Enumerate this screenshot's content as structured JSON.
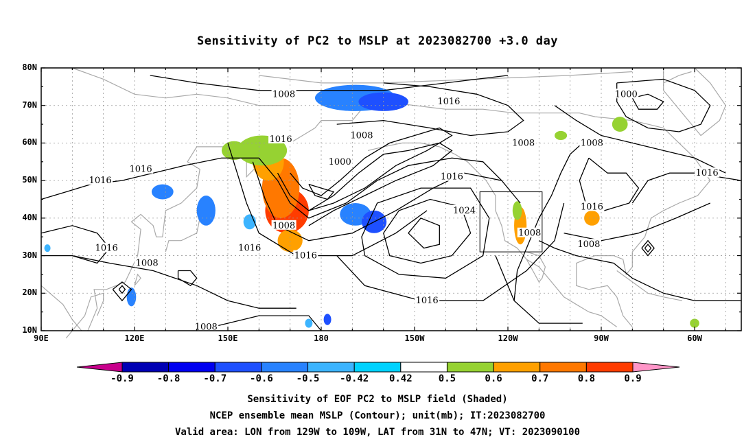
{
  "title": "Sensitivity of PC2 to MSLP at 2023082700 +3.0 day",
  "lat_labels": [
    "80N",
    "70N",
    "60N",
    "50N",
    "40N",
    "30N",
    "20N",
    "10N"
  ],
  "lon_labels": [
    "90E",
    "120E",
    "150E",
    "180",
    "150W",
    "120W",
    "90W",
    "60W"
  ],
  "contour_labels": [
    {
      "text": "1008",
      "lon": 168,
      "lat": 73
    },
    {
      "text": "1016",
      "lon": 221,
      "lat": 71
    },
    {
      "text": "1000",
      "lon": 278,
      "lat": 73
    },
    {
      "text": "1008",
      "lon": 193,
      "lat": 62
    },
    {
      "text": "1016",
      "lon": 109,
      "lat": 50
    },
    {
      "text": "1016",
      "lon": 122,
      "lat": 53
    },
    {
      "text": "1016",
      "lon": 167,
      "lat": 61
    },
    {
      "text": "1000",
      "lon": 186,
      "lat": 55
    },
    {
      "text": "1016",
      "lon": 222,
      "lat": 51
    },
    {
      "text": "1024",
      "lon": 226,
      "lat": 42
    },
    {
      "text": "1008",
      "lon": 245,
      "lat": 60
    },
    {
      "text": "1008",
      "lon": 267,
      "lat": 60
    },
    {
      "text": "1016",
      "lon": 304,
      "lat": 52
    },
    {
      "text": "1016",
      "lon": 267,
      "lat": 43
    },
    {
      "text": "1008",
      "lon": 168,
      "lat": 38
    },
    {
      "text": "1016",
      "lon": 175,
      "lat": 30
    },
    {
      "text": "1016",
      "lon": 157,
      "lat": 32
    },
    {
      "text": "1016",
      "lon": 111,
      "lat": 32
    },
    {
      "text": "1008",
      "lon": 247,
      "lat": 36
    },
    {
      "text": "1008",
      "lon": 266,
      "lat": 33
    },
    {
      "text": "1008",
      "lon": 124,
      "lat": 28
    },
    {
      "text": "1016",
      "lon": 214,
      "lat": 18
    },
    {
      "text": "1008",
      "lon": 143,
      "lat": 11
    }
  ],
  "sensitivity_patches": [
    {
      "lon": 169,
      "lat": 42,
      "value": 0.8
    },
    {
      "lon": 167,
      "lat": 48,
      "value": 0.7
    },
    {
      "lon": 163,
      "lat": 55,
      "value": 0.6
    },
    {
      "lon": 161,
      "lat": 58,
      "value": 0.5
    },
    {
      "lon": 152,
      "lat": 58,
      "value": 0.5
    },
    {
      "lon": 170,
      "lat": 34,
      "value": 0.6
    },
    {
      "lon": 244,
      "lat": 38,
      "value": 0.6
    },
    {
      "lon": 267,
      "lat": 40,
      "value": 0.6
    },
    {
      "lon": 243,
      "lat": 42,
      "value": 0.5
    },
    {
      "lon": 276,
      "lat": 65,
      "value": 0.5
    },
    {
      "lon": 257,
      "lat": 62,
      "value": 0.5
    },
    {
      "lon": 300,
      "lat": 12,
      "value": 0.5
    },
    {
      "lon": 191,
      "lat": 72,
      "value": -0.5
    },
    {
      "lon": 200,
      "lat": 71,
      "value": -0.6
    },
    {
      "lon": 129,
      "lat": 47,
      "value": -0.5
    },
    {
      "lon": 143,
      "lat": 42,
      "value": -0.5
    },
    {
      "lon": 191,
      "lat": 41,
      "value": -0.5
    },
    {
      "lon": 197,
      "lat": 39,
      "value": -0.6
    },
    {
      "lon": 157,
      "lat": 39,
      "value": -0.42
    },
    {
      "lon": 119,
      "lat": 19,
      "value": -0.5
    },
    {
      "lon": 182,
      "lat": 13,
      "value": -0.6
    },
    {
      "lon": 176,
      "lat": 12,
      "value": -0.42
    },
    {
      "lon": 92,
      "lat": 32,
      "value": -0.42
    }
  ],
  "valid_area": {
    "lon_min": 231,
    "lon_max": 251,
    "lat_min": 31,
    "lat_max": 47
  },
  "colorbar": {
    "labels": [
      "-0.9",
      "-0.8",
      "-0.7",
      "-0.6",
      "-0.5",
      "-0.42",
      "0.42",
      "0.5",
      "0.6",
      "0.7",
      "0.8",
      "0.9"
    ],
    "colors": [
      "#c8008c",
      "#0000b4",
      "#0000f0",
      "#1e50ff",
      "#2882ff",
      "#3cb4ff",
      "#00d2ff",
      "#ffffff",
      "#96d232",
      "#ffa000",
      "#ff7800",
      "#ff3c00",
      "#f00000",
      "#ff96c8"
    ]
  },
  "footer": [
    "Sensitivity of EOF PC2 to MSLP field (Shaded)",
    "NCEP ensemble mean MSLP (Contour); unit(mb); IT:2023082700",
    "Valid area: LON from 129W to 109W, LAT from 31N to 47N; VT: 2023090100"
  ]
}
